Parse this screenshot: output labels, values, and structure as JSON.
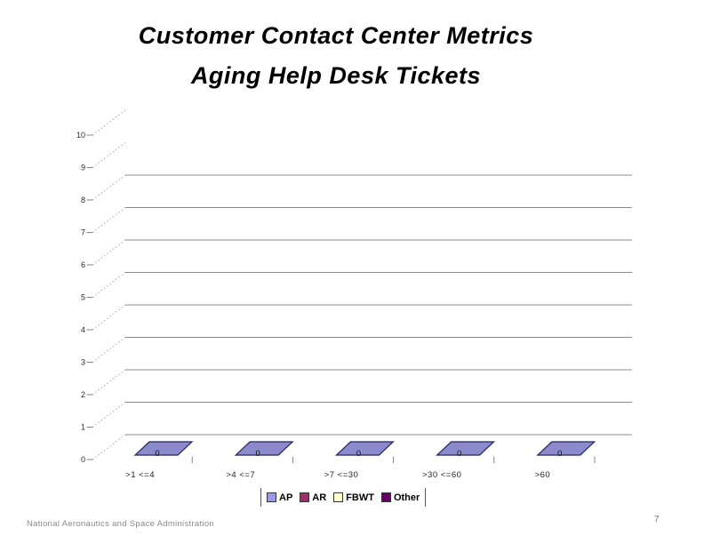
{
  "slide": {
    "title_line1": "Customer Contact Center Metrics",
    "title_line2": "Aging Help Desk Tickets",
    "footer": "National Aeronautics and Space Administration",
    "page_number": "7"
  },
  "chart_data": {
    "type": "bar",
    "projection": "3d",
    "title": "Aging Help Desk Tickets",
    "categories": [
      ">1 <=4",
      ">4 <=7",
      ">7 <=30",
      ">30 <=60",
      ">60"
    ],
    "series": [
      {
        "name": "AP",
        "color": "#9999EE",
        "values": [
          0,
          0,
          0,
          0,
          0
        ]
      },
      {
        "name": "AR",
        "color": "#993366",
        "values": [
          0,
          0,
          0,
          0,
          0
        ]
      },
      {
        "name": "FBWT",
        "color": "#FFFFCC",
        "values": [
          0,
          0,
          0,
          0,
          0
        ]
      },
      {
        "name": "Other",
        "color": "#660066",
        "values": [
          0,
          0,
          0,
          0,
          0
        ]
      }
    ],
    "data_labels": [
      "0",
      "0",
      "0",
      "0",
      "0"
    ],
    "y_axis": {
      "min": 0,
      "max": 10,
      "step": 1,
      "ticks": [
        10,
        9,
        8,
        7,
        6,
        5,
        4,
        3,
        2,
        1,
        0
      ]
    },
    "xlabel": "",
    "ylabel": "",
    "grid": true,
    "legend": {
      "position": "bottom",
      "entries": [
        "AP",
        "AR",
        "FBWT",
        "Other"
      ]
    },
    "bar_color": "#8A8ACC",
    "bar_border": "#26265E"
  }
}
